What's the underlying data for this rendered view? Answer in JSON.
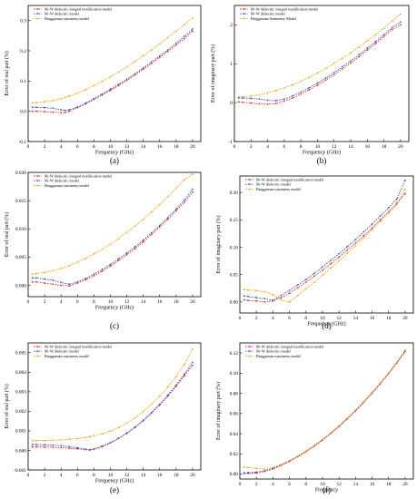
{
  "figure": {
    "panels": [
      {
        "id": "a",
        "panel_label": "(a)",
        "xlabel": "Frequency (GHz)",
        "ylabel": "Error of real part (%)",
        "xticks": [
          "0",
          "2",
          "4",
          "6",
          "8",
          "10",
          "12",
          "14",
          "16",
          "18",
          "20"
        ],
        "yticks": [
          "-0.1",
          "0.0",
          "0.1",
          "0.2",
          "0.3"
        ],
        "legend": [
          "M–W dielectric integral modification model",
          "M–W dielectric model",
          "Bruggeman symmetry model"
        ]
      },
      {
        "id": "b",
        "panel_label": "(b)",
        "xlabel": "Frequency (GHz)",
        "ylabel": "Error of imaginary part (%)",
        "xticks": [
          "0",
          "2",
          "4",
          "6",
          "8",
          "10",
          "12",
          "14",
          "16",
          "18",
          "20"
        ],
        "yticks": [
          "-1",
          "0",
          "1",
          "2"
        ],
        "legend": [
          "M–W dielectric integral modification model",
          "M–W dielectric model",
          "Bruggeman Symmetry Model"
        ]
      },
      {
        "id": "c",
        "panel_label": "(c)",
        "xlabel": "Frequency (GHz)",
        "ylabel": "Error of real part (%)",
        "xticks": [
          "0",
          "2",
          "4",
          "6",
          "8",
          "10",
          "12",
          "14",
          "16",
          "18",
          "20"
        ],
        "yticks": [
          "0.000",
          "0.005",
          "0.010",
          "0.015",
          "0.020"
        ],
        "legend": [
          "M–W dielectric integral modification model",
          "M–W dielectric model",
          "Bruggeman symmetry model"
        ]
      },
      {
        "id": "d",
        "panel_label": "(d)",
        "xlabel": "Frequency (GHz)",
        "ylabel": "Error of imaginary part (%)",
        "xticks": [
          "0",
          "2",
          "4",
          "6",
          "8",
          "10",
          "12",
          "14",
          "16",
          "18",
          "20"
        ],
        "yticks": [
          "0.00",
          "0.05",
          "0.10",
          "0.15",
          "0.20"
        ],
        "legend": [
          "M–W dielectric integral modification model",
          "M–W dielectric model",
          "Bruggeman symmetry model"
        ]
      },
      {
        "id": "e",
        "panel_label": "(e)",
        "xlabel": "Frequency (GHz)",
        "ylabel": "Error of real part (%)",
        "xticks": [
          "0",
          "2",
          "4",
          "6",
          "8",
          "10",
          "12",
          "14",
          "16",
          "18",
          "20"
        ],
        "yticks": [
          "-0.001",
          "0.000",
          "0.001",
          "0.002",
          "0.003",
          "0.004",
          "0.005"
        ],
        "legend": [
          "M–W dielectric integral modification model",
          "M–W dielectric model",
          "Bruggeman symmetry model"
        ]
      },
      {
        "id": "f",
        "panel_label": "(f)",
        "xlabel": "Frequency",
        "ylabel": "Error of imaginary part (%)",
        "xticks": [
          "0",
          "2",
          "4",
          "6",
          "8",
          "10",
          "12",
          "14",
          "16",
          "18",
          "20"
        ],
        "yticks": [
          "0.00",
          "0.02",
          "0.04",
          "0.06",
          "0.08",
          "0.10",
          "0.12"
        ],
        "legend": [
          "M–W dielectric integral modification model",
          "M–W dielectric model",
          "Bruggeman symmetry model"
        ]
      }
    ]
  },
  "colors": {
    "series": [
      "#e0352b",
      "#3a52c9",
      "#f2a51c"
    ],
    "axis": "#000000"
  },
  "chart_data": [
    {
      "type": "line",
      "xlim": [
        0,
        21
      ],
      "ylim": [
        -0.1,
        0.35
      ],
      "x": [
        0.5,
        1,
        2,
        3,
        4,
        4.5,
        5,
        6,
        7,
        8,
        9,
        10,
        11,
        12,
        13,
        14,
        15,
        16,
        17,
        18,
        19,
        20
      ],
      "series": [
        {
          "name": "M–W dielectric integral modification model",
          "values": [
            0.0,
            0.0,
            -0.001,
            -0.003,
            -0.005,
            -0.004,
            0.0,
            0.012,
            0.025,
            0.039,
            0.054,
            0.069,
            0.085,
            0.102,
            0.12,
            0.139,
            0.158,
            0.178,
            0.198,
            0.219,
            0.24,
            0.265
          ]
        },
        {
          "name": "M–W dielectric model",
          "values": [
            0.013,
            0.013,
            0.012,
            0.01,
            0.005,
            0.003,
            0.005,
            0.014,
            0.027,
            0.042,
            0.057,
            0.073,
            0.089,
            0.106,
            0.124,
            0.143,
            0.163,
            0.183,
            0.203,
            0.225,
            0.247,
            0.272
          ]
        },
        {
          "name": "Bruggeman symmetry model",
          "values": [
            0.028,
            0.029,
            0.032,
            0.036,
            0.042,
            0.046,
            0.05,
            0.06,
            0.072,
            0.085,
            0.099,
            0.114,
            0.13,
            0.147,
            0.165,
            0.184,
            0.203,
            0.223,
            0.244,
            0.265,
            0.287,
            0.308
          ]
        }
      ]
    },
    {
      "type": "line",
      "xlim": [
        0,
        21
      ],
      "ylim": [
        -1,
        2.5
      ],
      "x": [
        0.5,
        1,
        2,
        3,
        4,
        5,
        6,
        7,
        8,
        9,
        10,
        11,
        12,
        13,
        14,
        15,
        16,
        17,
        18,
        19,
        20
      ],
      "series": [
        {
          "name": "M–W dielectric integral modification model",
          "values": [
            0.02,
            0.01,
            -0.01,
            -0.03,
            -0.04,
            -0.02,
            0.04,
            0.12,
            0.22,
            0.33,
            0.45,
            0.58,
            0.72,
            0.87,
            1.02,
            1.18,
            1.35,
            1.52,
            1.7,
            1.88,
            2.0
          ]
        },
        {
          "name": "M–W dielectric model",
          "values": [
            0.12,
            0.12,
            0.11,
            0.09,
            0.06,
            0.05,
            0.09,
            0.17,
            0.27,
            0.38,
            0.5,
            0.63,
            0.77,
            0.92,
            1.07,
            1.23,
            1.4,
            1.57,
            1.75,
            1.93,
            2.07
          ]
        },
        {
          "name": "Bruggeman Symmetry Model",
          "values": [
            0.15,
            0.15,
            0.17,
            0.2,
            0.25,
            0.31,
            0.38,
            0.46,
            0.55,
            0.65,
            0.76,
            0.88,
            1.01,
            1.14,
            1.28,
            1.43,
            1.59,
            1.75,
            1.92,
            2.1,
            2.28
          ]
        }
      ]
    },
    {
      "type": "line",
      "xlim": [
        0,
        21
      ],
      "ylim": [
        -0.002,
        0.02
      ],
      "x": [
        0.5,
        1,
        2,
        3,
        4,
        5,
        6,
        7,
        8,
        9,
        10,
        11,
        12,
        13,
        14,
        15,
        16,
        17,
        18,
        19,
        20
      ],
      "series": [
        {
          "name": "M–W dielectric integral modification model",
          "values": [
            0.0006,
            0.0006,
            0.0004,
            0.0002,
            0.0,
            -0.0001,
            0.0004,
            0.001,
            0.0017,
            0.0025,
            0.0034,
            0.0044,
            0.0054,
            0.0065,
            0.0077,
            0.009,
            0.0103,
            0.0117,
            0.0132,
            0.0147,
            0.0165
          ]
        },
        {
          "name": "M–W dielectric model",
          "values": [
            0.0013,
            0.0013,
            0.0011,
            0.0009,
            0.0005,
            0.0002,
            0.0006,
            0.0012,
            0.002,
            0.0028,
            0.0037,
            0.0047,
            0.0057,
            0.0068,
            0.008,
            0.0093,
            0.0106,
            0.012,
            0.0135,
            0.0151,
            0.017
          ]
        },
        {
          "name": "Bruggeman symmetry model",
          "values": [
            0.002,
            0.0021,
            0.0023,
            0.0026,
            0.003,
            0.0035,
            0.0041,
            0.0048,
            0.0056,
            0.0064,
            0.0073,
            0.0083,
            0.0094,
            0.0105,
            0.0117,
            0.013,
            0.0143,
            0.0157,
            0.0172,
            0.0187,
            0.0197
          ]
        }
      ]
    },
    {
      "type": "line",
      "xlim": [
        0,
        21
      ],
      "ylim": [
        -0.02,
        0.23
      ],
      "x": [
        0.5,
        1,
        2,
        3,
        4,
        5,
        6,
        7,
        8,
        9,
        10,
        11,
        12,
        13,
        14,
        15,
        16,
        17,
        18,
        19,
        20
      ],
      "series": [
        {
          "name": "M–W dielectric integral modification model",
          "values": [
            0.004,
            0.003,
            0.002,
            0.0,
            0.002,
            0.008,
            0.016,
            0.026,
            0.036,
            0.047,
            0.058,
            0.07,
            0.082,
            0.095,
            0.108,
            0.121,
            0.135,
            0.15,
            0.165,
            0.18,
            0.198
          ]
        },
        {
          "name": "M–W dielectric model",
          "values": [
            0.011,
            0.01,
            0.008,
            0.006,
            0.003,
            0.012,
            0.021,
            0.031,
            0.041,
            0.052,
            0.064,
            0.076,
            0.088,
            0.101,
            0.114,
            0.128,
            0.142,
            0.157,
            0.172,
            0.188,
            0.222
          ]
        },
        {
          "name": "Bruggeman symmetry model",
          "values": [
            0.023,
            0.022,
            0.021,
            0.019,
            0.013,
            0.004,
            0.0,
            0.012,
            0.024,
            0.036,
            0.049,
            0.062,
            0.075,
            0.089,
            0.103,
            0.117,
            0.132,
            0.147,
            0.162,
            0.178,
            0.206
          ]
        }
      ]
    },
    {
      "type": "line",
      "xlim": [
        0,
        21
      ],
      "ylim": [
        -0.001,
        0.0055
      ],
      "x": [
        0.5,
        1,
        2,
        3,
        4,
        5,
        6,
        7,
        7.5,
        8,
        9,
        10,
        11,
        12,
        13,
        14,
        15,
        16,
        17,
        18,
        19,
        20
      ],
      "series": [
        {
          "name": "M–W dielectric integral modification model",
          "values": [
            0.00018,
            0.00018,
            0.00017,
            0.00016,
            0.00014,
            0.00011,
            8e-05,
            4e-05,
            3e-05,
            8e-05,
            0.00022,
            0.0004,
            0.00062,
            0.00088,
            0.00118,
            0.00152,
            0.0019,
            0.00232,
            0.00278,
            0.00328,
            0.00382,
            0.00435
          ]
        },
        {
          "name": "M–W dielectric model",
          "values": [
            0.0003,
            0.0003,
            0.00029,
            0.00027,
            0.00024,
            0.00019,
            0.00013,
            6e-05,
            2e-05,
            5e-05,
            0.00019,
            0.00038,
            0.00061,
            0.00088,
            0.00119,
            0.00154,
            0.00193,
            0.00236,
            0.00283,
            0.00334,
            0.0039,
            0.0045
          ]
        },
        {
          "name": "Bruggeman symmetry model",
          "values": [
            0.0005,
            0.0005,
            0.00051,
            0.00052,
            0.00054,
            0.00057,
            0.00061,
            0.00067,
            0.00071,
            0.00075,
            0.00085,
            0.00099,
            0.00117,
            0.0014,
            0.00167,
            0.00199,
            0.00236,
            0.00278,
            0.00325,
            0.00377,
            0.0044,
            0.0052
          ]
        }
      ]
    },
    {
      "type": "line",
      "xlim": [
        0,
        21
      ],
      "ylim": [
        -0.005,
        0.13
      ],
      "x": [
        0.5,
        1,
        2,
        3,
        4,
        5,
        6,
        7,
        8,
        9,
        10,
        11,
        12,
        13,
        14,
        15,
        16,
        17,
        18,
        19,
        20
      ],
      "series": [
        {
          "name": "M–W dielectric integral modification model",
          "values": [
            0.0005,
            0.0006,
            0.001,
            0.0025,
            0.005,
            0.0085,
            0.0125,
            0.017,
            0.022,
            0.0275,
            0.0335,
            0.04,
            0.047,
            0.0545,
            0.0625,
            0.071,
            0.08,
            0.0895,
            0.0995,
            0.11,
            0.1215
          ]
        },
        {
          "name": "M–W dielectric model",
          "values": [
            0.001,
            0.0012,
            0.0018,
            0.0032,
            0.0057,
            0.009,
            0.013,
            0.0175,
            0.0225,
            0.028,
            0.034,
            0.0405,
            0.0475,
            0.055,
            0.063,
            0.0715,
            0.0805,
            0.09,
            0.1,
            0.1105,
            0.1225
          ]
        },
        {
          "name": "Bruggeman symmetry model",
          "values": [
            0.007,
            0.0065,
            0.0055,
            0.005,
            0.0065,
            0.0095,
            0.0133,
            0.0178,
            0.0228,
            0.0283,
            0.0343,
            0.0408,
            0.0478,
            0.0553,
            0.0633,
            0.0718,
            0.0808,
            0.0903,
            0.1003,
            0.1108,
            0.1228
          ]
        }
      ]
    }
  ]
}
